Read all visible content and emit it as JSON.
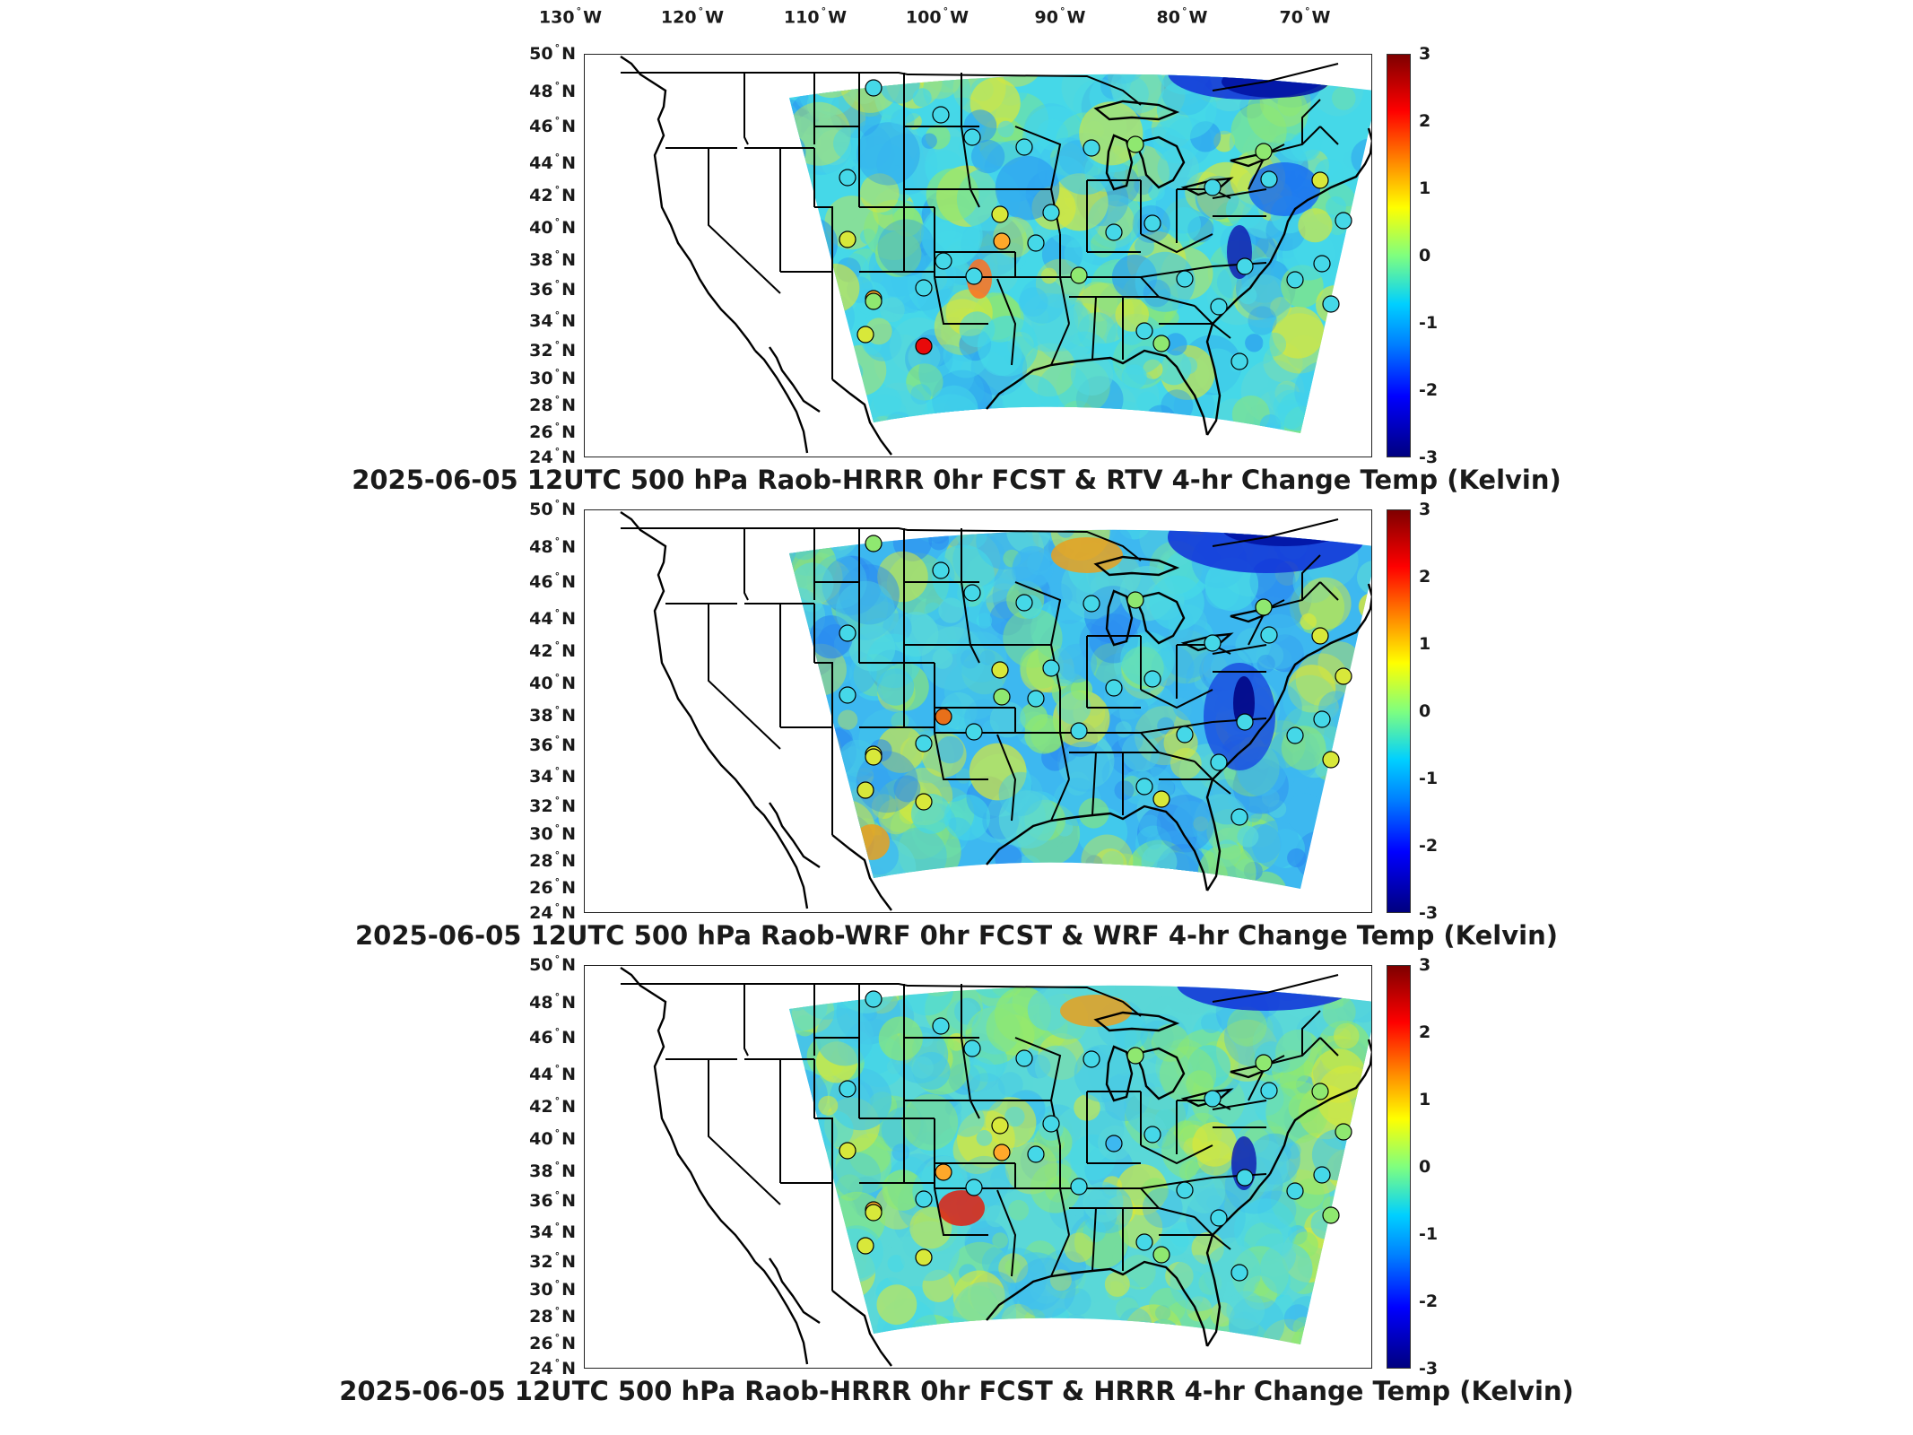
{
  "lon_labels": [
    {
      "deg": "130",
      "hemi": "W"
    },
    {
      "deg": "120",
      "hemi": "W"
    },
    {
      "deg": "110",
      "hemi": "W"
    },
    {
      "deg": "100",
      "hemi": "W"
    },
    {
      "deg": "90",
      "hemi": "W"
    },
    {
      "deg": "80",
      "hemi": "W"
    },
    {
      "deg": "70",
      "hemi": "W"
    }
  ],
  "lat_labels": [
    {
      "deg": "50",
      "hemi": "N"
    },
    {
      "deg": "48",
      "hemi": "N"
    },
    {
      "deg": "46",
      "hemi": "N"
    },
    {
      "deg": "44",
      "hemi": "N"
    },
    {
      "deg": "42",
      "hemi": "N"
    },
    {
      "deg": "40",
      "hemi": "N"
    },
    {
      "deg": "38",
      "hemi": "N"
    },
    {
      "deg": "36",
      "hemi": "N"
    },
    {
      "deg": "34",
      "hemi": "N"
    },
    {
      "deg": "32",
      "hemi": "N"
    },
    {
      "deg": "30",
      "hemi": "N"
    },
    {
      "deg": "28",
      "hemi": "N"
    },
    {
      "deg": "26",
      "hemi": "N"
    },
    {
      "deg": "24",
      "hemi": "N"
    }
  ],
  "colorbar": {
    "ticks": [
      "3",
      "2",
      "1",
      "0",
      "-1",
      "-2",
      "-3"
    ],
    "min": -3,
    "max": 3,
    "colormap": [
      "#7f0000",
      "#ff0000",
      "#ff8c00",
      "#ffff00",
      "#7fff7f",
      "#00d0ff",
      "#0080ff",
      "#0000ff",
      "#00007f"
    ]
  },
  "panels": [
    {
      "caption": "2025-06-05 12UTC 500 hPa Raob-HRRR 0hr FCST & RTV 4-hr Change Temp (Kelvin)",
      "field_base_color": "#45d8e8",
      "station_colors": [
        "#45d8e8",
        "#45d8e8",
        "#45d8e8",
        "#45d8e8",
        "#45d8e8",
        "#8fe870",
        "#45d8e8",
        "#d8e83a",
        "#ffae2a",
        "#d8e83a",
        "#45d8e8",
        "#ffa82a",
        "#8fe870",
        "#e80a0a",
        "#d8e83a",
        "#45d8e8",
        "#45d8e8",
        "#45d8e8",
        "#45d8e8",
        "#8fe870",
        "#45d8e8",
        "#45d8e8",
        "#45d8e8",
        "#45d8e8",
        "#8fe870",
        "#d8e83a",
        "#45d8e8",
        "#45d8e8",
        "#45d8e8",
        "#45d8e8",
        "#45d8e8",
        "#45d8e8",
        "#8fe870",
        "#45d8e8",
        "#45d8e8",
        "#45d8e8"
      ]
    },
    {
      "caption": "2025-06-05 12UTC 500 hPa Raob-WRF 0hr FCST & WRF 4-hr Change Temp (Kelvin)",
      "field_base_color": "#3db8f0",
      "station_colors": [
        "#8fe870",
        "#45d8e8",
        "#45d8e8",
        "#45d8e8",
        "#45d8e8",
        "#8fe870",
        "#45d8e8",
        "#d8e83a",
        "#d8e83a",
        "#45d8e8",
        "#e8701a",
        "#8fe870",
        "#d8e83a",
        "#d8e83a",
        "#d8e83a",
        "#45d8e8",
        "#45d8e8",
        "#45d8e8",
        "#45d8e8",
        "#45d8e8",
        "#45d8e8",
        "#45d8e8",
        "#45d8e8",
        "#45d8e8",
        "#8fe870",
        "#d8e83a",
        "#d8e83a",
        "#d8e83a",
        "#45d8e8",
        "#45d8e8",
        "#45d8e8",
        "#45d8e8",
        "#d8e83a",
        "#45d8e8",
        "#45d8e8",
        "#45d8e8"
      ]
    },
    {
      "caption": "2025-06-05 12UTC 500 hPa Raob-HRRR 0hr FCST & HRRR 4-hr Change Temp (Kelvin)",
      "field_base_color": "#5ad8d8",
      "station_colors": [
        "#45d8e8",
        "#45d8e8",
        "#45d8e8",
        "#45d8e8",
        "#45d8e8",
        "#8fe870",
        "#45d8e8",
        "#d8e83a",
        "#ffae2a",
        "#d8e83a",
        "#ffa82a",
        "#ffa82a",
        "#d8e83a",
        "#d8e83a",
        "#d8e83a",
        "#45d8e8",
        "#45d8e8",
        "#45d8e8",
        "#45d8e8",
        "#45d8e8",
        "#3db8f0",
        "#45d8e8",
        "#45d8e8",
        "#45d8e8",
        "#8fe870",
        "#8fe870",
        "#8fe870",
        "#8fe870",
        "#45d8e8",
        "#45d8e8",
        "#45d8e8",
        "#45d8e8",
        "#8fe870",
        "#45d8e8",
        "#45d8e8",
        "#45d8e8"
      ]
    }
  ]
}
